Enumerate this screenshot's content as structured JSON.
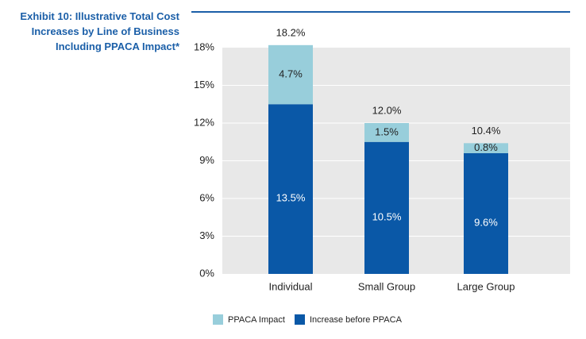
{
  "title_lines": [
    "Exhibit 10: Illustrative Total Cost",
    "Increases by Line of Business",
    "Including PPACA Impact*"
  ],
  "colors": {
    "title": "#1b5fa8",
    "base": "#0a58a7",
    "impact": "#98cedb",
    "plot_bg": "#e8e8e8",
    "grid": "#ffffff"
  },
  "chart_data": {
    "type": "bar",
    "stacked": true,
    "categories": [
      "Individual",
      "Small Group",
      "Large Group"
    ],
    "series": [
      {
        "name": "Increase before PPACA",
        "values": [
          13.5,
          10.5,
          9.6
        ],
        "labels": [
          "13.5%",
          "10.5%",
          "9.6%"
        ],
        "color": "#0a58a7"
      },
      {
        "name": "PPACA Impact",
        "values": [
          4.7,
          1.5,
          0.8
        ],
        "labels": [
          "4.7%",
          "1.5%",
          "0.8%"
        ],
        "color": "#98cedb"
      }
    ],
    "totals": [
      18.2,
      12.0,
      10.4
    ],
    "total_labels": [
      "18.2%",
      "12.0%",
      "10.4%"
    ],
    "yticks": [
      0,
      3,
      6,
      9,
      12,
      15,
      18
    ],
    "ytick_labels": [
      "0%",
      "3%",
      "6%",
      "9%",
      "12%",
      "15%",
      "18%"
    ],
    "ylim": [
      0,
      18
    ],
    "grid": true,
    "legend": {
      "position": "bottom",
      "entries": [
        "PPACA Impact",
        "Increase before PPACA"
      ]
    }
  }
}
